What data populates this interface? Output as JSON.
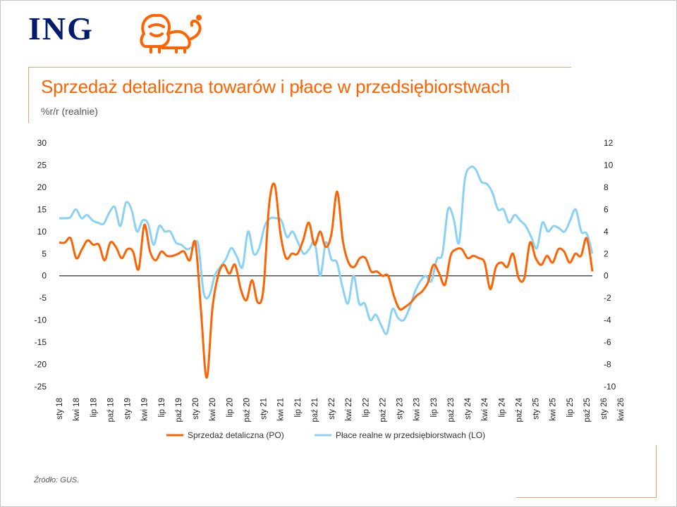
{
  "brand": {
    "name": "ING",
    "logo_icon": "lion-icon",
    "color_brand": "#001b6e",
    "color_accent": "#ff6200"
  },
  "source": "Źródło: GUS.",
  "chart_data": {
    "type": "line",
    "title": "Sprzedaż detaliczna towarów i płace w przedsiębiorstwach",
    "subtitle": "%r/r (realnie)",
    "grid": false,
    "legend_position": "bottom",
    "y_left": {
      "ylim": [
        -25,
        30
      ],
      "ticks": [
        30,
        25,
        20,
        15,
        10,
        5,
        0,
        -5,
        -10,
        -15,
        -20,
        -25
      ]
    },
    "y_right": {
      "ylim": [
        -10,
        12
      ],
      "ticks": [
        12,
        10,
        8,
        6,
        4,
        2,
        0,
        -2,
        -4,
        -6,
        -8,
        -10
      ]
    },
    "x_tick_labels": [
      "sty 18",
      "kwi 18",
      "lip 18",
      "paź 18",
      "sty 19",
      "kwi 19",
      "lip 19",
      "paź 19",
      "sty 20",
      "kwi 20",
      "lip 20",
      "paź 20",
      "sty 21",
      "kwi 21",
      "lip 21",
      "paź 21",
      "sty 22",
      "kwi 22",
      "lip 22",
      "paź 22",
      "sty 23",
      "kwi 23",
      "lip 23",
      "paź 23",
      "sty 24",
      "kwi 24",
      "lip 24",
      "paź 24",
      "sty 25",
      "kwi 25",
      "lip 25",
      "paź 25",
      "sty 26",
      "kwi 26"
    ],
    "series": [
      {
        "name": "Sprzedaż detaliczna (PO)",
        "axis": "left",
        "color": "#ff6200",
        "values": [
          7.5,
          7.5,
          8.5,
          4.0,
          6.0,
          8.0,
          7.0,
          7.0,
          3.5,
          7.5,
          6.5,
          4.0,
          6.0,
          5.5,
          1.5,
          11.5,
          5.5,
          3.5,
          5.5,
          4.5,
          4.5,
          5.0,
          5.5,
          3.5,
          7.5,
          -8.0,
          -23.0,
          -7.5,
          0.0,
          2.5,
          0.5,
          2.5,
          -3.0,
          -5.5,
          -1.0,
          -6.0,
          -3.0,
          16.0,
          20.5,
          9.5,
          4.0,
          5.0,
          5.0,
          8.0,
          12.0,
          7.0,
          10.0,
          6.5,
          9.5,
          19.0,
          8.0,
          3.0,
          2.0,
          4.0,
          4.0,
          1.0,
          1.0,
          0.0,
          0.0,
          -4.5,
          -7.5,
          -7.0,
          -6.0,
          -4.5,
          -3.5,
          -1.5,
          2.5,
          0.5,
          -2.0,
          4.5,
          6.0,
          6.0,
          4.0,
          4.5,
          4.0,
          3.0,
          -3.0,
          2.0,
          3.0,
          2.0,
          5.0,
          -0.5,
          -0.5,
          7.5,
          4.0,
          2.5,
          4.5,
          3.0,
          6.0,
          5.5,
          3.0,
          5.0,
          4.5,
          8.5,
          1.0
        ]
      },
      {
        "name": "Płace realne w przedsiębiorstwach (LO)",
        "axis": "right",
        "color": "#89d2f5",
        "values": [
          5.2,
          5.2,
          5.3,
          6.0,
          5.2,
          5.5,
          5.0,
          4.8,
          4.7,
          5.7,
          6.2,
          4.5,
          6.6,
          6.0,
          4.0,
          5.0,
          4.7,
          2.8,
          4.5,
          4.0,
          4.0,
          3.0,
          2.8,
          2.4,
          2.6,
          2.9,
          -1.5,
          -1.8,
          0.0,
          0.8,
          1.5,
          2.5,
          1.7,
          0.8,
          4.0,
          2.0,
          2.5,
          4.5,
          5.2,
          5.2,
          5.0,
          3.5,
          4.0,
          3.0,
          2.0,
          2.4,
          3.0,
          0.0,
          3.0,
          1.5,
          1.2,
          -1.0,
          -2.5,
          0.0,
          -2.5,
          -2.5,
          -4.0,
          -3.5,
          -4.5,
          -5.2,
          -3.0,
          -3.8,
          -4.0,
          -3.0,
          -1.5,
          -0.5,
          0.0,
          -0.5,
          1.5,
          2.0,
          6.0,
          5.2,
          3.0,
          8.6,
          9.8,
          9.6,
          8.5,
          8.3,
          7.5,
          6.0,
          6.0,
          4.8,
          5.5,
          5.0,
          4.5,
          3.5,
          2.5,
          4.8,
          4.0,
          4.5,
          4.3,
          4.0,
          5.0,
          6.0,
          4.0,
          3.8,
          2.0
        ]
      }
    ]
  }
}
